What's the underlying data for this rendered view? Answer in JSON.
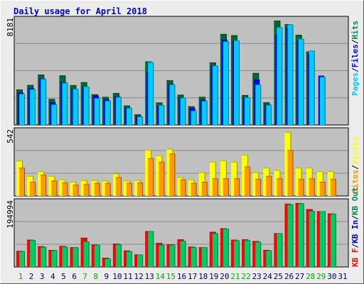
{
  "chart_data": {
    "type": "bar",
    "title": "Daily usage for April 2018",
    "colors": {
      "background": "#ececec",
      "panel": "#c0c0c0",
      "grid": "#8a8a8a",
      "title": "#0000cc",
      "hits": "#00ccff",
      "files": "#0000ff",
      "pages": "#006633",
      "visits": "#ffff00",
      "sites": "#ff9900",
      "kb_out": "#00cc66",
      "kb_in": "#0000cc",
      "kb_f": "#ff0000",
      "weekend_label": "#00aa00",
      "weekday_label": "#000066"
    },
    "categories": [
      "1",
      "2",
      "3",
      "4",
      "5",
      "6",
      "7",
      "8",
      "9",
      "10",
      "11",
      "12",
      "13",
      "14",
      "15",
      "16",
      "17",
      "18",
      "19",
      "20",
      "21",
      "22",
      "23",
      "24",
      "25",
      "26",
      "27",
      "28",
      "29",
      "30",
      "31"
    ],
    "weekend_days": [
      "1",
      "7",
      "8",
      "14",
      "15",
      "21",
      "22",
      "28",
      "29"
    ],
    "top_panel": {
      "ymax_label": "8181",
      "ymax": 8181,
      "legend": {
        "pages": "Pages",
        "files": "Files",
        "hits": "Hits",
        "sep1": "/",
        "sep2": "/"
      },
      "series": [
        {
          "name": "Pages",
          "values": [
            2780,
            3130,
            3950,
            2040,
            3880,
            3120,
            3350,
            2400,
            2200,
            2500,
            1520,
            830,
            4980,
            1760,
            3500,
            2370,
            1460,
            2200,
            4900,
            7130,
            7030,
            2340,
            4070,
            1770,
            8181,
            7900,
            7060,
            5750,
            0,
            0,
            0
          ]
        },
        {
          "name": "Files",
          "values": [
            2540,
            2890,
            3630,
            1770,
            3330,
            2820,
            2950,
            2300,
            2000,
            2230,
            1340,
            700,
            4120,
            1510,
            3200,
            2130,
            1310,
            1960,
            4650,
            6680,
            6600,
            2160,
            3550,
            1600,
            7080,
            7630,
            6620,
            5560,
            3860,
            0,
            0
          ]
        },
        {
          "name": "Hits",
          "values": [
            2450,
            2800,
            3600,
            1600,
            3300,
            2830,
            3000,
            2100,
            1900,
            2200,
            1330,
            660,
            4930,
            1560,
            3170,
            2130,
            1120,
            1880,
            4650,
            6550,
            6630,
            2170,
            3170,
            1570,
            7660,
            7880,
            6750,
            5830,
            3770,
            0,
            0
          ]
        }
      ]
    },
    "middle_panel": {
      "ymax_label": "542",
      "ymax": 542,
      "legend": {
        "visits": "Visits",
        "sites": "Sites",
        "sep1": "/"
      },
      "series": [
        {
          "name": "Visits",
          "values": [
            300,
            170,
            210,
            170,
            140,
            120,
            135,
            135,
            130,
            190,
            130,
            135,
            390,
            345,
            400,
            160,
            140,
            200,
            290,
            300,
            290,
            350,
            200,
            240,
            220,
            542,
            240,
            240,
            210,
            210,
            0
          ]
        },
        {
          "name": "Sites",
          "values": [
            240,
            120,
            180,
            130,
            115,
            95,
            100,
            110,
            110,
            160,
            110,
            115,
            320,
            290,
            360,
            140,
            110,
            120,
            150,
            150,
            150,
            250,
            145,
            170,
            150,
            390,
            145,
            150,
            120,
            145,
            0
          ]
        }
      ]
    },
    "bottom_panel": {
      "ymax_label": "194994",
      "ymax": 194994,
      "legend": {
        "kb_f": "KB F",
        "kb_in": "KB In",
        "kb_out": "KB Out",
        "sep1": "/",
        "sep2": "/"
      },
      "series": [
        {
          "name": "KB F",
          "values": [
            49000,
            83000,
            63000,
            52000,
            64000,
            60000,
            89000,
            68000,
            28000,
            71000,
            50000,
            38000,
            109000,
            73000,
            69000,
            84000,
            62000,
            60000,
            107000,
            118000,
            83000,
            84000,
            79000,
            52000,
            103000,
            193000,
            194994,
            176000,
            170000,
            163000,
            0
          ]
        },
        {
          "name": "KB Out",
          "values": [
            48000,
            82000,
            61000,
            51000,
            62000,
            60000,
            78000,
            67000,
            26000,
            69000,
            48000,
            38000,
            109000,
            68000,
            68000,
            80000,
            60000,
            60000,
            103000,
            117000,
            81000,
            82000,
            77000,
            50000,
            103000,
            191000,
            194000,
            171000,
            170000,
            162000,
            0
          ]
        }
      ]
    }
  }
}
